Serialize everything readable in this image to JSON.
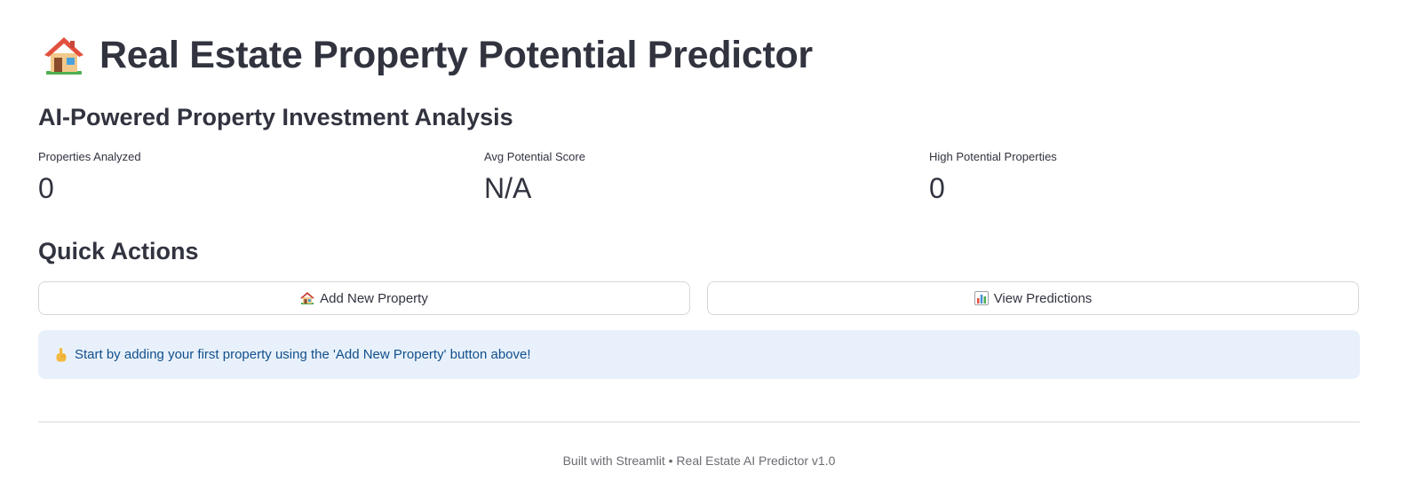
{
  "header": {
    "title": "Real Estate Property Potential Predictor",
    "title_icon": "house-icon"
  },
  "subtitle": "AI-Powered Property Investment Analysis",
  "metrics": [
    {
      "label": "Properties Analyzed",
      "value": "0"
    },
    {
      "label": "Avg Potential Score",
      "value": "N/A"
    },
    {
      "label": "High Potential Properties",
      "value": "0"
    }
  ],
  "quick_actions": {
    "title": "Quick Actions",
    "add_button": {
      "label": "Add New Property",
      "icon": "house-with-garden-icon"
    },
    "view_button": {
      "label": "View Predictions",
      "icon": "bar-chart-icon"
    }
  },
  "info": {
    "icon": "pointing-hand-icon",
    "text": "Start by adding your first property using the 'Add New Property' button above!"
  },
  "footer": {
    "text": "Built with Streamlit • Real Estate AI Predictor v1.0"
  },
  "colors": {
    "text": "#31333f",
    "info_bg": "#e8f1fb",
    "info_text": "#124f8c",
    "border": "#d6d6d9",
    "footer_text": "#6b6b73"
  }
}
